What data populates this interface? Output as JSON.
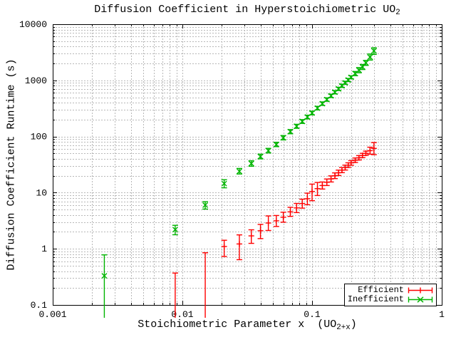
{
  "ui": {
    "title_main": "Diffusion Coefficient in Hyperstoichiometric UO",
    "title_sub": "2",
    "y_axis_label": "Diffusion Coefficient Runtime (s)",
    "x_axis_label_main": "Stoichiometric Parameter x  (UO",
    "x_axis_label_sub": "2+x",
    "x_axis_label_close": ")"
  },
  "chart_data": {
    "type": "scatter",
    "title": "Diffusion Coefficient in Hyperstoichiometric UO₂",
    "xlabel": "Stoichiometric Parameter x (UO₂₊ₓ)",
    "ylabel": "Diffusion Coefficient Runtime (s)",
    "x_scale": "log",
    "y_scale": "log",
    "xlim": [
      0.001,
      1
    ],
    "ylim": [
      0.1,
      10000
    ],
    "grid": true,
    "grid_color": "#b8b8b8",
    "legend_position": "bottom-right",
    "x_ticks": [
      {
        "value": 0.001,
        "label": "0.001"
      },
      {
        "value": 0.01,
        "label": "0.01"
      },
      {
        "value": 0.1,
        "label": "0.1"
      },
      {
        "value": 1,
        "label": "1"
      }
    ],
    "y_ticks": [
      {
        "value": 0.1,
        "label": "0.1"
      },
      {
        "value": 1,
        "label": "1"
      },
      {
        "value": 10,
        "label": "10"
      },
      {
        "value": 100,
        "label": "100"
      },
      {
        "value": 1000,
        "label": "1000"
      },
      {
        "value": 10000,
        "label": "10000"
      }
    ],
    "series": [
      {
        "name": "Efficient",
        "color": "#ff0000",
        "marker": "plus",
        "errorbars": true,
        "points": [
          [
            0.0088,
            null,
            0.05,
            0.37
          ],
          [
            0.015,
            null,
            0.05,
            0.85
          ],
          [
            0.021,
            1.1,
            0.73,
            1.42
          ],
          [
            0.0275,
            1.22,
            0.64,
            1.77
          ],
          [
            0.034,
            1.7,
            1.25,
            2.18
          ],
          [
            0.04,
            2.1,
            1.52,
            2.72
          ],
          [
            0.046,
            2.88,
            2.12,
            3.85
          ],
          [
            0.053,
            3.15,
            2.5,
            3.92
          ],
          [
            0.06,
            3.65,
            2.98,
            4.48
          ],
          [
            0.068,
            4.55,
            3.78,
            5.48
          ],
          [
            0.076,
            5.35,
            4.42,
            6.42
          ],
          [
            0.084,
            6.4,
            5.3,
            7.65
          ],
          [
            0.092,
            7.8,
            6.1,
            9.8
          ],
          [
            0.1,
            10.5,
            7.2,
            14.2
          ],
          [
            0.11,
            11.8,
            8.9,
            15.2
          ],
          [
            0.12,
            13.4,
            11.6,
            15.5
          ],
          [
            0.13,
            15.3,
            13.4,
            17.5
          ],
          [
            0.14,
            17.6,
            15.5,
            19.9
          ],
          [
            0.15,
            20.0,
            17.8,
            22.5
          ],
          [
            0.16,
            22.6,
            20.2,
            25.2
          ],
          [
            0.17,
            25.2,
            22.7,
            28.0
          ],
          [
            0.18,
            28.0,
            25.3,
            30.9
          ],
          [
            0.19,
            30.9,
            28.1,
            34.0
          ],
          [
            0.2,
            33.9,
            30.8,
            37.2
          ],
          [
            0.215,
            37.8,
            34.5,
            41.4
          ],
          [
            0.23,
            41.8,
            38.2,
            45.7
          ],
          [
            0.245,
            46.0,
            42.1,
            50.2
          ],
          [
            0.26,
            50.3,
            46.1,
            54.9
          ],
          [
            0.28,
            56.0,
            48.5,
            64.5
          ],
          [
            0.3,
            61.5,
            47.5,
            78.0
          ]
        ]
      },
      {
        "name": "Inefficient",
        "color": "#00b400",
        "marker": "cross",
        "errorbars": true,
        "points": [
          [
            0.0025,
            0.33,
            0.05,
            0.78
          ],
          [
            0.0088,
            2.2,
            1.78,
            2.62
          ],
          [
            0.015,
            6.0,
            5.1,
            6.9
          ],
          [
            0.021,
            14.5,
            12.2,
            17.0
          ],
          [
            0.0275,
            24,
            21.5,
            27
          ],
          [
            0.034,
            33,
            29.5,
            37
          ],
          [
            0.04,
            44,
            40,
            48.5
          ],
          [
            0.046,
            56,
            51,
            61.5
          ],
          [
            0.053,
            72,
            66,
            79
          ],
          [
            0.06,
            95,
            87,
            104
          ],
          [
            0.068,
            122,
            112,
            133
          ],
          [
            0.076,
            152,
            140,
            165
          ],
          [
            0.084,
            185,
            171,
            200
          ],
          [
            0.092,
            222,
            206,
            240
          ],
          [
            0.1,
            262,
            243,
            283
          ],
          [
            0.11,
            320,
            297,
            345
          ],
          [
            0.12,
            385,
            358,
            414
          ],
          [
            0.13,
            455,
            424,
            489
          ],
          [
            0.14,
            530,
            494,
            568
          ],
          [
            0.15,
            615,
            574,
            659
          ],
          [
            0.16,
            705,
            659,
            754
          ],
          [
            0.17,
            800,
            749,
            855
          ],
          [
            0.18,
            905,
            848,
            966
          ],
          [
            0.19,
            1015,
            952,
            1082
          ],
          [
            0.2,
            1135,
            1065,
            1210
          ],
          [
            0.215,
            1320,
            1210,
            1440
          ],
          [
            0.23,
            1520,
            1365,
            1690
          ],
          [
            0.245,
            1730,
            1560,
            1920
          ],
          [
            0.26,
            2050,
            1850,
            2270
          ],
          [
            0.28,
            2600,
            2300,
            2950
          ],
          [
            0.3,
            3350,
            2900,
            3800
          ]
        ]
      }
    ]
  }
}
